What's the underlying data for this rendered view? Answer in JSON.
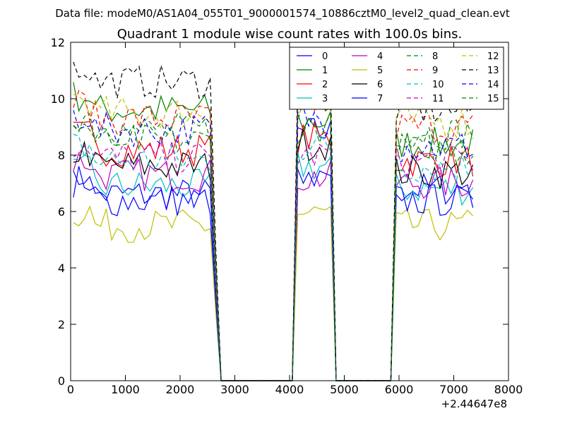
{
  "figure": {
    "suptitle": "Data file: modeM0/AS1A04_055T01_9000001574_10886cztM0_level2_quad_clean.evt",
    "title": "Quadrant 1 module wise count rates with 100.0s bins.",
    "x_offset_label": "+2.44647e8"
  },
  "chart_data": {
    "type": "line",
    "title": "Quadrant 1 module wise count rates with 100.0s bins.",
    "xlabel": "",
    "ylabel": "",
    "xlim": [
      0,
      8000
    ],
    "ylim": [
      0,
      12
    ],
    "xticks": [
      0,
      1000,
      2000,
      3000,
      4000,
      5000,
      6000,
      7000,
      8000
    ],
    "yticks": [
      0,
      2,
      4,
      6,
      8,
      10,
      12
    ],
    "xtick_labels": [
      "0",
      "1000",
      "2000",
      "3000",
      "4000",
      "5000",
      "6000",
      "7000",
      "8000"
    ],
    "ytick_labels": [
      "0",
      "2",
      "4",
      "6",
      "8",
      "10",
      "12"
    ],
    "legend_position": "top-right",
    "legend_columns": 4,
    "segments": [
      {
        "start": 50,
        "end": 2550
      },
      {
        "start": 4150,
        "end": 4750
      },
      {
        "start": 5950,
        "end": 7350
      }
    ],
    "drop_to_zero": [
      {
        "from": 2550,
        "to": 2750
      },
      {
        "from": 4050,
        "to": 4150
      },
      {
        "from": 4750,
        "to": 4850
      },
      {
        "from": 5850,
        "to": 5950
      }
    ],
    "x_range_zero": [
      0,
      7350
    ],
    "series": [
      {
        "name": "0",
        "color": "#0000ff",
        "dash": "solid",
        "levels": [
          6.6,
          8.8,
          6.8
        ]
      },
      {
        "name": "1",
        "color": "#008000",
        "dash": "solid",
        "levels": [
          9.6,
          9.2,
          8.4
        ]
      },
      {
        "name": "2",
        "color": "#ff0000",
        "dash": "solid",
        "levels": [
          8.2,
          8.6,
          7.8
        ]
      },
      {
        "name": "3",
        "color": "#00bfbf",
        "dash": "solid",
        "levels": [
          6.9,
          7.6,
          6.8
        ]
      },
      {
        "name": "4",
        "color": "#bf00bf",
        "dash": "solid",
        "levels": [
          7.3,
          7.2,
          7.0
        ]
      },
      {
        "name": "5",
        "color": "#bfbf00",
        "dash": "solid",
        "levels": [
          5.5,
          5.9,
          5.5
        ]
      },
      {
        "name": "6",
        "color": "#000000",
        "dash": "solid",
        "levels": [
          7.6,
          8.4,
          7.4
        ]
      },
      {
        "name": "7",
        "color": "#0000ff",
        "dash": "solid",
        "levels": [
          6.4,
          7.0,
          6.4
        ]
      },
      {
        "name": "8",
        "color": "#008000",
        "dash": "dashed",
        "levels": [
          8.9,
          9.7,
          8.8
        ]
      },
      {
        "name": "9",
        "color": "#ff0000",
        "dash": "dashed",
        "levels": [
          9.3,
          9.8,
          9.0
        ]
      },
      {
        "name": "10",
        "color": "#00bfbf",
        "dash": "dashed",
        "levels": [
          7.8,
          8.3,
          7.6
        ]
      },
      {
        "name": "11",
        "color": "#bf00bf",
        "dash": "dashed",
        "levels": [
          7.9,
          8.0,
          7.8
        ]
      },
      {
        "name": "12",
        "color": "#bfbf00",
        "dash": "dashed",
        "levels": [
          9.5,
          9.9,
          9.2
        ]
      },
      {
        "name": "13",
        "color": "#000000",
        "dash": "dashed",
        "levels": [
          10.6,
          10.5,
          9.6
        ]
      },
      {
        "name": "14",
        "color": "#0000ff",
        "dash": "dashed",
        "levels": [
          8.9,
          9.3,
          8.3
        ]
      },
      {
        "name": "15",
        "color": "#008000",
        "dash": "dashed",
        "levels": [
          8.5,
          9.0,
          8.2
        ]
      }
    ]
  }
}
